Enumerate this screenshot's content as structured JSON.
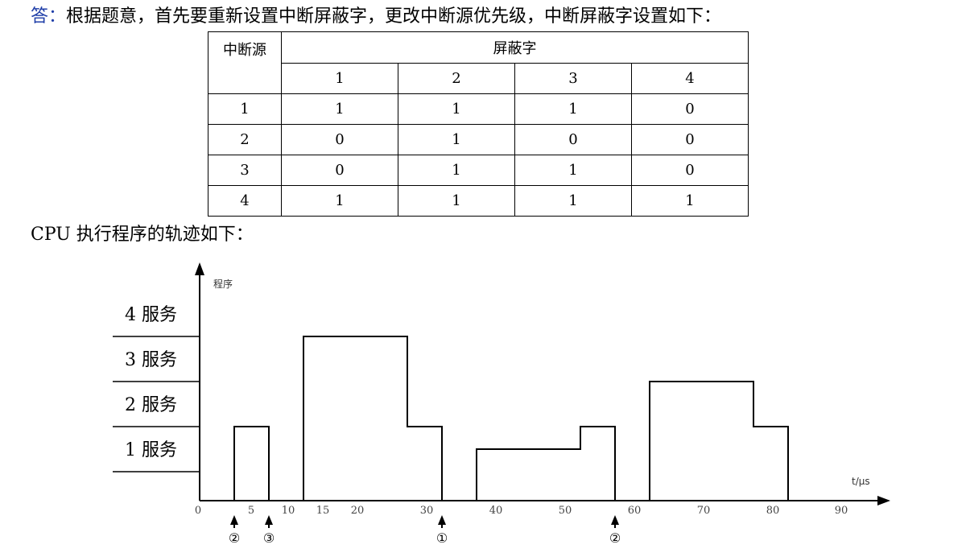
{
  "answer": {
    "prefix": "答：",
    "text": "根据题意，首先要重新设置中断屏蔽字，更改中断源优先级，中断屏蔽字设置如下："
  },
  "mask_table": {
    "header_source": "中断源",
    "header_mask": "屏蔽字",
    "columns": [
      "1",
      "2",
      "3",
      "4"
    ],
    "rows": [
      {
        "source": "1",
        "bits": [
          "1",
          "1",
          "1",
          "0"
        ]
      },
      {
        "source": "2",
        "bits": [
          "0",
          "1",
          "0",
          "0"
        ]
      },
      {
        "source": "3",
        "bits": [
          "0",
          "1",
          "1",
          "0"
        ]
      },
      {
        "source": "4",
        "bits": [
          "1",
          "1",
          "1",
          "1"
        ]
      }
    ]
  },
  "trace_title": "CPU 执行程序的轨迹如下：",
  "chart_data": {
    "type": "line",
    "ylabel": "程序",
    "xlabel": "t/μs",
    "levels": [
      "1 服务",
      "2 服务",
      "3 服务",
      "4 服务"
    ],
    "x_ticks": [
      "0",
      "5",
      "10",
      "15",
      "20",
      "30",
      "40",
      "50",
      "60",
      "70",
      "80",
      "90"
    ],
    "x_tick_values": [
      0,
      5,
      10,
      15,
      20,
      30,
      40,
      50,
      60,
      70,
      80,
      90
    ],
    "trace_segments": [
      {
        "start": 5,
        "end": 10,
        "level": 1
      },
      {
        "start": 15,
        "end": 30,
        "level": 3
      },
      {
        "start": 30,
        "end": 35,
        "level": 1
      },
      {
        "start": 40,
        "end": 55,
        "level": 0.5
      },
      {
        "start": 55,
        "end": 60,
        "level": 1
      },
      {
        "start": 65,
        "end": 80,
        "level": 2
      },
      {
        "start": 80,
        "end": 85,
        "level": 1
      }
    ],
    "interrupt_requests": [
      {
        "t": 5,
        "label": "②"
      },
      {
        "t": 10,
        "label": "③"
      },
      {
        "t": 35,
        "label": "①"
      },
      {
        "t": 60,
        "label": "②"
      }
    ]
  }
}
